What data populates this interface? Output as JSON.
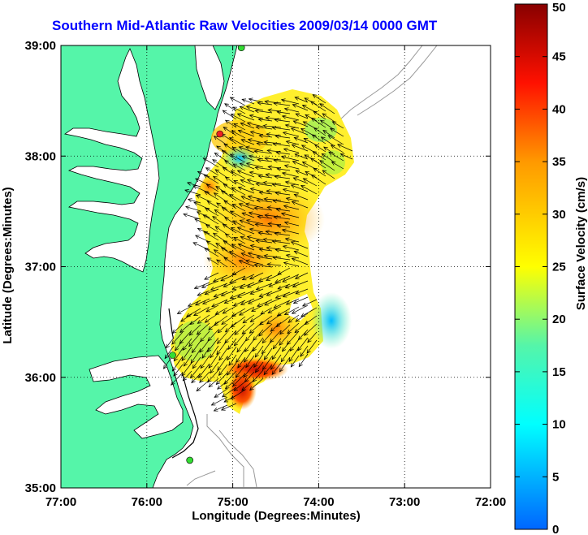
{
  "title": "Southern Mid-Atlantic Raw Velocities 2009/03/14 0000 GMT",
  "xaxis": {
    "label": "Longitude (Degrees:Minutes)",
    "min": -77,
    "max": -72,
    "ticks": [
      {
        "value": -77,
        "label": "77:00"
      },
      {
        "value": -76,
        "label": "76:00"
      },
      {
        "value": -75,
        "label": "75:00"
      },
      {
        "value": -74,
        "label": "74:00"
      },
      {
        "value": -73,
        "label": "73:00"
      },
      {
        "value": -72,
        "label": "72:00"
      }
    ]
  },
  "yaxis": {
    "label": "Latitude (Degrees:Minutes)",
    "min": 35,
    "max": 39,
    "ticks": [
      {
        "value": 39,
        "label": "39:00"
      },
      {
        "value": 38,
        "label": "38:00"
      },
      {
        "value": 37,
        "label": "37:00"
      },
      {
        "value": 36,
        "label": "36:00"
      },
      {
        "value": 35,
        "label": "35:00"
      }
    ]
  },
  "colorbar": {
    "label": "Surface Velocity (cm/s)",
    "min": 0,
    "max": 50,
    "ticks": [
      "0",
      "5",
      "10",
      "15",
      "20",
      "25",
      "30",
      "35",
      "40",
      "45",
      "50"
    ]
  },
  "colors": {
    "land": "#55f5a9",
    "title": "#0000ff",
    "station": "#33dd33",
    "station_alt": "#ee2222"
  },
  "stations": [
    {
      "lon": -74.9,
      "lat": 38.98,
      "type": "normal"
    },
    {
      "lon": -75.15,
      "lat": 38.2,
      "type": "alt"
    },
    {
      "lon": -75.7,
      "lat": 36.2,
      "type": "normal"
    },
    {
      "lon": -75.5,
      "lat": 35.25,
      "type": "normal"
    }
  ]
}
